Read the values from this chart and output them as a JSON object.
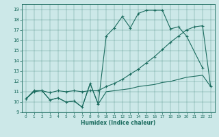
{
  "xlabel": "Humidex (Indice chaleur)",
  "xlim": [
    -0.5,
    23.5
  ],
  "ylim": [
    9,
    19.5
  ],
  "yticks": [
    9,
    10,
    11,
    12,
    13,
    14,
    15,
    16,
    17,
    18,
    19
  ],
  "xticks": [
    0,
    1,
    2,
    3,
    4,
    5,
    6,
    7,
    8,
    9,
    10,
    11,
    12,
    13,
    14,
    15,
    16,
    17,
    18,
    19,
    20,
    21,
    22,
    23
  ],
  "bg_color": "#cce8e8",
  "line_color": "#1a6b5e",
  "series1_x": [
    0,
    1,
    2,
    3,
    4,
    5,
    6,
    7,
    8,
    9,
    10,
    11,
    12,
    13,
    14,
    15,
    16,
    17,
    18,
    19,
    20,
    22
  ],
  "series1_y": [
    10.3,
    11.1,
    11.1,
    10.2,
    10.4,
    10.0,
    10.1,
    9.5,
    11.8,
    9.8,
    16.4,
    17.2,
    18.3,
    17.2,
    18.6,
    18.9,
    18.9,
    18.9,
    17.1,
    17.3,
    16.4,
    13.3
  ],
  "series2_x": [
    0,
    1,
    2,
    3,
    4,
    5,
    6,
    7,
    8,
    9,
    10,
    11,
    12,
    13,
    14,
    15,
    16,
    17,
    18,
    19,
    20,
    21,
    22,
    23
  ],
  "series2_y": [
    10.3,
    11.0,
    11.1,
    10.9,
    11.1,
    11.0,
    11.1,
    11.0,
    11.1,
    11.1,
    11.5,
    11.8,
    12.2,
    12.7,
    13.2,
    13.8,
    14.4,
    15.1,
    15.8,
    16.4,
    17.0,
    17.3,
    17.4,
    11.5
  ],
  "series3_x": [
    0,
    1,
    2,
    3,
    4,
    5,
    6,
    7,
    8,
    9,
    10,
    11,
    12,
    13,
    14,
    15,
    16,
    17,
    18,
    19,
    20,
    21,
    22,
    23
  ],
  "series3_y": [
    10.3,
    11.1,
    11.1,
    10.2,
    10.4,
    10.0,
    10.1,
    9.5,
    11.8,
    9.8,
    11.0,
    11.1,
    11.2,
    11.3,
    11.5,
    11.6,
    11.7,
    11.9,
    12.0,
    12.2,
    12.4,
    12.5,
    12.6,
    11.5
  ]
}
